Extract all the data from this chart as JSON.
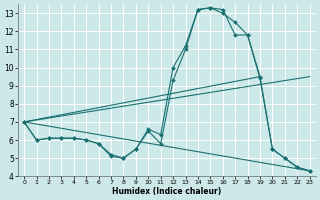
{
  "xlabel": "Humidex (Indice chaleur)",
  "bg_color": "#cce8e8",
  "grid_color": "#ffffff",
  "line_color": "#1a7070",
  "xlim": [
    -0.5,
    23.5
  ],
  "ylim": [
    4,
    13.5
  ],
  "xtick_labels": [
    "0",
    "1",
    "2",
    "3",
    "4",
    "5",
    "6",
    "7",
    "8",
    "9",
    "10",
    "11",
    "12",
    "13",
    "14",
    "15",
    "16",
    "17",
    "18",
    "19",
    "20",
    "21",
    "22",
    "23"
  ],
  "xtick_vals": [
    0,
    1,
    2,
    3,
    4,
    5,
    6,
    7,
    8,
    9,
    10,
    11,
    12,
    13,
    14,
    15,
    16,
    17,
    18,
    19,
    20,
    21,
    22,
    23
  ],
  "ytick_vals": [
    4,
    5,
    6,
    7,
    8,
    9,
    10,
    11,
    12,
    13
  ],
  "series": [
    {
      "x": [
        0,
        1,
        2,
        3,
        4,
        5,
        6,
        7,
        8,
        9,
        10,
        11,
        12,
        13,
        14,
        15,
        16,
        17,
        18,
        19,
        20,
        21,
        22,
        23
      ],
      "y": [
        7.0,
        6.0,
        6.1,
        6.1,
        6.1,
        6.0,
        5.8,
        5.1,
        5.0,
        5.5,
        6.5,
        5.8,
        9.3,
        11.0,
        13.2,
        13.3,
        13.0,
        12.5,
        11.8,
        9.5,
        5.5,
        5.0,
        4.5,
        4.3
      ],
      "marker": true
    },
    {
      "x": [
        0,
        1,
        2,
        3,
        4,
        5,
        6,
        7,
        8,
        9,
        10,
        11,
        12,
        13,
        14,
        15,
        16,
        17,
        18,
        19,
        20,
        21,
        22,
        23
      ],
      "y": [
        7.0,
        6.0,
        6.1,
        6.1,
        6.1,
        6.0,
        5.8,
        5.2,
        5.0,
        5.5,
        6.6,
        6.3,
        10.0,
        11.2,
        13.2,
        13.3,
        13.2,
        11.8,
        11.8,
        9.4,
        5.5,
        5.0,
        4.5,
        4.3
      ],
      "marker": true
    },
    {
      "x": [
        0,
        19
      ],
      "y": [
        7.0,
        9.5
      ],
      "marker": false
    },
    {
      "x": [
        0,
        23
      ],
      "y": [
        7.0,
        9.5
      ],
      "marker": false
    },
    {
      "x": [
        0,
        23
      ],
      "y": [
        7.0,
        4.3
      ],
      "marker": false
    }
  ]
}
